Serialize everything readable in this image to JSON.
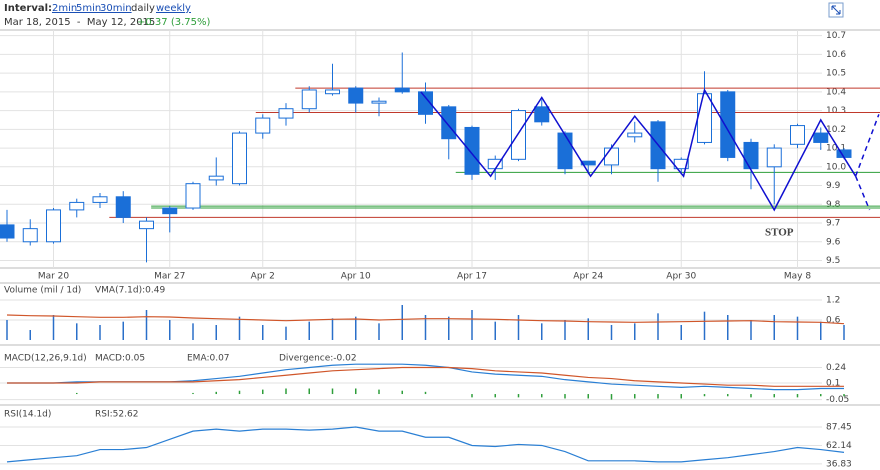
{
  "header": {
    "interval_label": "Interval:",
    "intervals": [
      "2min",
      "5min",
      "30min",
      "daily",
      "weekly"
    ],
    "range": "Mar 18, 2015  -  May 12, 2015",
    "change": "+0.37 (3.75%)"
  },
  "chart_data": [
    {
      "type": "candlestick",
      "color": "#1a6fd8",
      "categories": [
        null,
        null,
        "Mar 20",
        null,
        null,
        null,
        null,
        "Mar 27",
        null,
        null,
        null,
        "Apr 2",
        null,
        null,
        null,
        "Apr 10",
        null,
        null,
        null,
        null,
        "Apr 17",
        null,
        null,
        null,
        null,
        "Apr 24",
        null,
        null,
        null,
        "Apr 30",
        null,
        null,
        null,
        null,
        "May 8",
        null,
        null
      ],
      "open": [
        9.69,
        9.6,
        9.6,
        9.77,
        9.81,
        9.84,
        9.67,
        9.78,
        9.78,
        9.93,
        9.91,
        10.18,
        10.26,
        10.31,
        10.39,
        10.42,
        10.34,
        10.42,
        10.4,
        10.32,
        10.21,
        9.99,
        10.04,
        10.32,
        10.18,
        10.03,
        10.01,
        10.16,
        10.24,
        9.99,
        10.13,
        10.4,
        10.13,
        10.0,
        10.12,
        10.18,
        10.09
      ],
      "high": [
        9.77,
        9.72,
        9.78,
        9.83,
        9.86,
        9.87,
        9.73,
        9.79,
        9.92,
        10.05,
        10.19,
        10.28,
        10.34,
        10.43,
        10.55,
        10.43,
        10.37,
        10.61,
        10.45,
        10.33,
        10.22,
        10.06,
        10.31,
        10.36,
        10.19,
        10.03,
        10.12,
        10.24,
        10.25,
        10.05,
        10.51,
        10.41,
        10.15,
        10.12,
        10.23,
        10.21,
        10.1
      ],
      "low": [
        9.6,
        9.58,
        9.59,
        9.73,
        9.78,
        9.7,
        9.49,
        9.65,
        9.77,
        9.9,
        9.9,
        10.15,
        10.22,
        10.29,
        10.38,
        10.29,
        10.27,
        10.39,
        10.23,
        10.04,
        9.93,
        9.93,
        10.03,
        10.22,
        9.96,
        9.96,
        9.96,
        10.13,
        9.92,
        9.96,
        10.12,
        10.03,
        9.88,
        9.8,
        10.1,
        10.09,
        10.04
      ],
      "close": [
        9.62,
        9.67,
        9.77,
        9.81,
        9.84,
        9.73,
        9.71,
        9.75,
        9.91,
        9.95,
        10.18,
        10.26,
        10.31,
        10.41,
        10.41,
        10.34,
        10.35,
        10.4,
        10.28,
        10.15,
        9.96,
        10.04,
        10.3,
        10.24,
        9.99,
        10.01,
        10.1,
        10.18,
        9.99,
        10.04,
        10.39,
        10.05,
        9.99,
        10.1,
        10.22,
        10.13,
        10.05
      ],
      "ylim": [
        9.46,
        10.73
      ],
      "yticks": [
        9.5,
        9.6,
        9.7,
        9.8,
        9.9,
        {
          "value": 10,
          "label": "10.0"
        },
        10.1,
        10.2,
        10.3,
        10.4,
        10.5,
        10.6,
        10.7
      ],
      "grid": true,
      "levels": [
        {
          "value": 10.42,
          "color": "#c0392b",
          "from": 12.4
        },
        {
          "value": 10.29,
          "color": "#c0392b",
          "from": 10.7
        },
        {
          "value": 9.97,
          "color": "#2e9e3a",
          "from": 19.3
        },
        {
          "value": 9.79,
          "color": "#2e9e3a",
          "from": 6.2
        },
        {
          "value": 9.78,
          "color": "#2e9e3a",
          "from": 6.2
        },
        {
          "value": 9.73,
          "color": "#c0392b",
          "from": 4.4
        }
      ],
      "zigzag": {
        "color": "#1010d0",
        "x": [
          17.8,
          20.8,
          23,
          25.1,
          27,
          29.1,
          30,
          33,
          35,
          36.5
        ],
        "y": [
          10.4,
          9.95,
          10.37,
          9.95,
          10.27,
          9.95,
          10.41,
          9.77,
          10.25,
          9.95
        ]
      },
      "projections": [
        {
          "x": [
            36.5,
            37.5
          ],
          "y": [
            9.95,
            10.28
          ]
        },
        {
          "x": [
            36.5,
            37.1
          ],
          "y": [
            9.95,
            9.77
          ]
        }
      ],
      "annotation": "STOP"
    },
    {
      "type": "bar",
      "title": "Volume (mil / 1d)",
      "color": "#2a6fc9",
      "values": [
        0.6,
        0.3,
        0.75,
        0.5,
        0.45,
        0.55,
        0.9,
        0.6,
        0.5,
        0.45,
        0.7,
        0.45,
        0.4,
        0.55,
        0.65,
        0.7,
        0.5,
        1.05,
        0.75,
        0.7,
        0.9,
        0.55,
        0.75,
        0.5,
        0.6,
        0.65,
        0.45,
        0.5,
        0.8,
        0.45,
        0.85,
        0.75,
        0.6,
        0.75,
        0.7,
        0.55,
        0.45
      ],
      "series": [
        {
          "name": "VMA(7.1d):0.49",
          "color": "#d0562a",
          "values": [
            0.75,
            0.73,
            0.72,
            0.7,
            0.68,
            0.68,
            0.7,
            0.69,
            0.66,
            0.64,
            0.62,
            0.6,
            0.58,
            0.6,
            0.62,
            0.63,
            0.6,
            0.62,
            0.64,
            0.64,
            0.63,
            0.62,
            0.6,
            0.58,
            0.57,
            0.55,
            0.54,
            0.53,
            0.54,
            0.55,
            0.56,
            0.57,
            0.58,
            0.55,
            0.54,
            0.53,
            0.49
          ]
        }
      ],
      "ylim": [
        0,
        1.68
      ],
      "yticks": [
        1.2,
        0.6
      ]
    },
    {
      "type": "line",
      "title": "MACD(12,26,9.1d)",
      "series": [
        {
          "name": "MACD:0.05",
          "color": "#2a7fd4",
          "values": [
            0.1,
            0.1,
            0.1,
            0.11,
            0.11,
            0.11,
            0.11,
            0.11,
            0.12,
            0.14,
            0.16,
            0.19,
            0.22,
            0.24,
            0.26,
            0.27,
            0.27,
            0.27,
            0.26,
            0.24,
            0.2,
            0.18,
            0.17,
            0.16,
            0.13,
            0.11,
            0.09,
            0.08,
            0.07,
            0.06,
            0.07,
            0.06,
            0.05,
            0.04,
            0.04,
            0.05,
            0.05
          ]
        },
        {
          "name": "EMA:0.07",
          "color": "#d0562a",
          "values": [
            0.1,
            0.1,
            0.1,
            0.1,
            0.11,
            0.11,
            0.11,
            0.11,
            0.11,
            0.12,
            0.13,
            0.15,
            0.17,
            0.19,
            0.21,
            0.22,
            0.23,
            0.24,
            0.24,
            0.24,
            0.23,
            0.21,
            0.2,
            0.19,
            0.17,
            0.15,
            0.14,
            0.12,
            0.11,
            0.1,
            0.09,
            0.08,
            0.08,
            0.07,
            0.07,
            0.07,
            0.07
          ]
        },
        {
          "name": "Divergence:-0.02",
          "color": "#2e9e3a",
          "kind": "bar",
          "values": [
            0,
            0,
            0,
            0.01,
            0,
            0,
            0,
            0,
            0.01,
            0.02,
            0.03,
            0.04,
            0.05,
            0.05,
            0.05,
            0.05,
            0.04,
            0.03,
            0.02,
            0,
            -0.03,
            -0.03,
            -0.03,
            -0.03,
            -0.04,
            -0.04,
            -0.05,
            -0.04,
            -0.04,
            -0.04,
            -0.02,
            -0.02,
            -0.03,
            -0.03,
            -0.03,
            -0.02,
            -0.02
          ]
        }
      ],
      "ylim": [
        -0.09,
        0.38
      ],
      "yticks": [
        0.24,
        0.1,
        -0.05
      ]
    },
    {
      "type": "line",
      "title": "RSI(14.1d)",
      "series": [
        {
          "name": "RSI:52.62",
          "color": "#2a7fd4",
          "values": [
            39.6,
            42.5,
            45.3,
            48.1,
            56.5,
            56.5,
            59.3,
            70.6,
            81.8,
            84.6,
            81.8,
            84.6,
            84.6,
            83.2,
            84.6,
            87.5,
            81.8,
            81.8,
            73.4,
            73.4,
            62.1,
            60.7,
            63.5,
            62.1,
            53.7,
            41,
            41,
            41,
            39.6,
            39.6,
            42.5,
            45.3,
            49.5,
            53.7,
            59.3,
            56.5,
            52.6
          ]
        }
      ],
      "ylim": [
        28.4,
        113.6
      ],
      "yticks": [
        87.45,
        62.14,
        36.83
      ]
    }
  ]
}
